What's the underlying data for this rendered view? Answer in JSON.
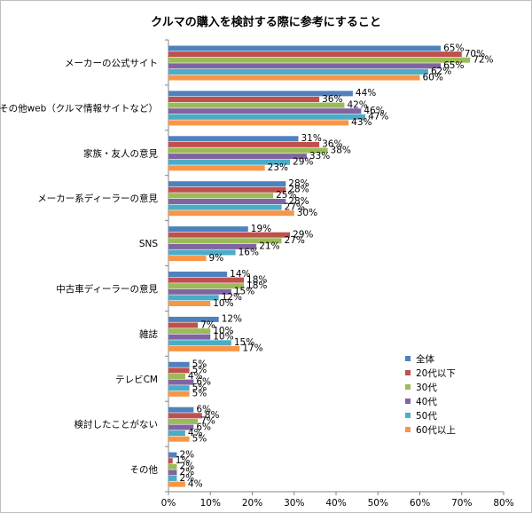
{
  "chart_data": {
    "type": "bar",
    "orientation": "horizontal",
    "title": "クルマの購入を検討する際に参考にすること",
    "categories": [
      "メーカーの公式サイト",
      "その他web（クルマ情報サイトなど）",
      "家族・友人の意見",
      "メーカー系ディーラーの意見",
      "SNS",
      "中古車ディーラーの意見",
      "雑誌",
      "テレビCM",
      "検討したことがない",
      "その他"
    ],
    "series": [
      {
        "name": "全体",
        "color": "#4f81bd",
        "values": [
          65,
          44,
          31,
          28,
          19,
          14,
          12,
          5,
          6,
          2
        ]
      },
      {
        "name": "20代以下",
        "color": "#c0504d",
        "values": [
          70,
          36,
          36,
          28,
          29,
          18,
          7,
          5,
          8,
          1
        ]
      },
      {
        "name": "30代",
        "color": "#9bbb59",
        "values": [
          72,
          42,
          38,
          25,
          27,
          18,
          10,
          4,
          7,
          2
        ]
      },
      {
        "name": "40代",
        "color": "#8064a2",
        "values": [
          65,
          46,
          33,
          28,
          21,
          15,
          10,
          6,
          6,
          2
        ]
      },
      {
        "name": "50代",
        "color": "#4bacc6",
        "values": [
          62,
          47,
          29,
          27,
          16,
          12,
          15,
          5,
          4,
          2
        ]
      },
      {
        "name": "60代以上",
        "color": "#f79646",
        "values": [
          60,
          43,
          23,
          30,
          9,
          10,
          17,
          5,
          5,
          4
        ]
      }
    ],
    "xlim": [
      0,
      80
    ],
    "xticks": [
      "0%",
      "10%",
      "20%",
      "30%",
      "40%",
      "50%",
      "60%",
      "70%",
      "80%"
    ],
    "value_suffix": "%",
    "grid": false,
    "legend": "right"
  }
}
